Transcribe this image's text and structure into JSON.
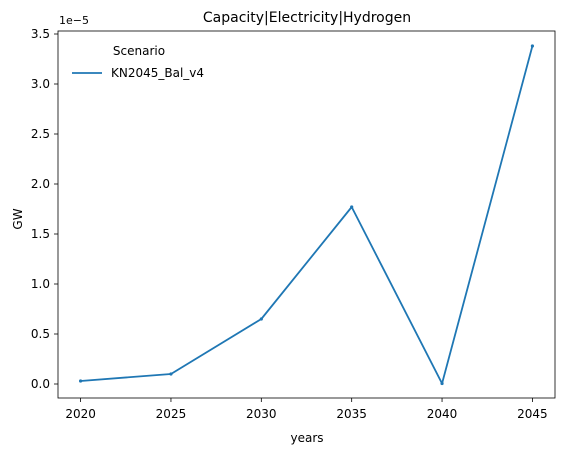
{
  "chart_data": {
    "type": "line",
    "title": "Capacity|Electricity|Hydrogen",
    "xlabel": "years",
    "ylabel": "GW",
    "y_scale_label": "1e−5",
    "x": [
      2020,
      2025,
      2030,
      2035,
      2040,
      2045
    ],
    "xlim": [
      2018.75,
      2046.25
    ],
    "ylim": [
      -1.4e-06,
      3.53e-05
    ],
    "x_ticks": [
      2020,
      2025,
      2030,
      2035,
      2040,
      2045
    ],
    "x_tick_labels": [
      "2020",
      "2025",
      "2030",
      "2035",
      "2040",
      "2045"
    ],
    "y_ticks": [
      0,
      5e-06,
      1e-05,
      1.5e-05,
      2e-05,
      2.5e-05,
      3e-05,
      3.5e-05
    ],
    "y_tick_labels": [
      "0.0",
      "0.5",
      "1.0",
      "1.5",
      "2.0",
      "2.5",
      "3.0",
      "3.5"
    ],
    "legend": {
      "title": "Scenario",
      "placement": "top-left"
    },
    "grid": false,
    "series": [
      {
        "name": "KN2045_Bal_v4",
        "color": "#1f77b4",
        "values": [
          3e-07,
          1e-06,
          6.5e-06,
          1.77e-05,
          5e-08,
          3.38e-05
        ]
      }
    ]
  }
}
